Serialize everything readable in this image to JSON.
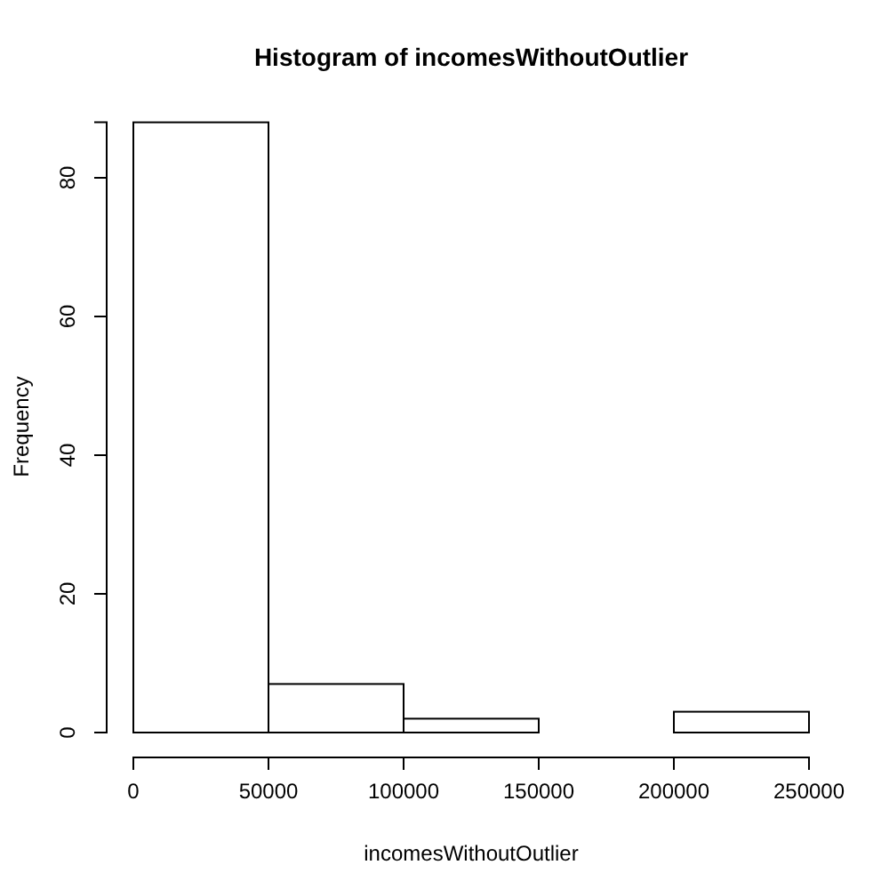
{
  "chart_data": {
    "type": "histogram",
    "title": "Histogram of incomesWithoutOutlier",
    "xlabel": "incomesWithoutOutlier",
    "ylabel": "Frequency",
    "bins": [
      0,
      50000,
      100000,
      150000,
      200000,
      250000
    ],
    "values": [
      88,
      7,
      2,
      0,
      3
    ],
    "color": "#ffffff",
    "xlim": [
      0,
      250000
    ],
    "xticks": [
      0,
      50000,
      100000,
      150000,
      200000,
      250000
    ],
    "ylim": [
      0,
      88
    ],
    "yticks": [
      0,
      20,
      40,
      60,
      80
    ],
    "grid": false
  }
}
